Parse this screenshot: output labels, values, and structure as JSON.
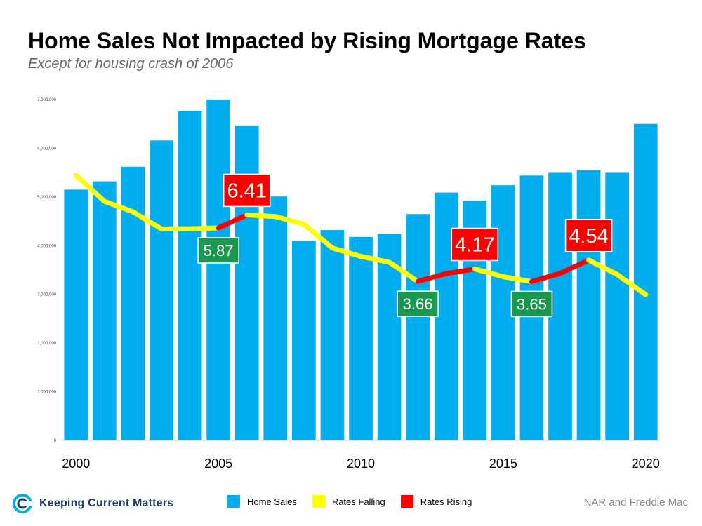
{
  "title": "Home Sales Not Impacted by Rising Mortgage Rates",
  "subtitle": "Except for housing crash of 2006",
  "source": "NAR and Freddie Mac",
  "logo": {
    "text": "Keeping Current Matters",
    "icon": "kcm-swirl-icon"
  },
  "colors": {
    "bars": "#00aeef",
    "falling": "#ffff00",
    "rising": "#ff0000",
    "label_green": "#1a9850",
    "label_red": "#ff0000"
  },
  "chart_data": {
    "type": "bar",
    "x": [
      2000,
      2001,
      2002,
      2003,
      2004,
      2005,
      2006,
      2007,
      2008,
      2009,
      2010,
      2011,
      2012,
      2013,
      2014,
      2015,
      2016,
      2017,
      2018,
      2019,
      2020
    ],
    "x_tick_labels": [
      "2000",
      "2005",
      "2010",
      "2015",
      "2020"
    ],
    "y_tick_labels": [
      "0",
      "1,000,000",
      "2,000,000",
      "3,000,000",
      "4,000,000",
      "5,000,000",
      "6,000,000",
      "7,000,000"
    ],
    "ylim": [
      0,
      7000000
    ],
    "series": [
      {
        "name": "Home Sales",
        "type": "bar",
        "values": [
          5150000,
          5320000,
          5620000,
          6160000,
          6770000,
          7000000,
          6470000,
          5010000,
          4090000,
          4320000,
          4180000,
          4240000,
          4650000,
          5090000,
          4920000,
          5240000,
          5440000,
          5510000,
          5550000,
          5510000,
          6500000
        ]
      },
      {
        "name": "Rates",
        "type": "line",
        "unit": "%",
        "values": [
          8.05,
          6.97,
          6.54,
          5.83,
          5.84,
          5.87,
          6.41,
          6.34,
          6.03,
          5.04,
          4.69,
          4.45,
          3.66,
          3.98,
          4.17,
          3.85,
          3.65,
          3.99,
          4.54,
          3.94,
          3.11
        ],
        "segments": [
          {
            "name": "Rates Falling",
            "from": 2000,
            "to": 2005
          },
          {
            "name": "Rates Rising",
            "from": 2005,
            "to": 2006
          },
          {
            "name": "Rates Falling",
            "from": 2006,
            "to": 2012
          },
          {
            "name": "Rates Rising",
            "from": 2012,
            "to": 2014
          },
          {
            "name": "Rates Falling",
            "from": 2014,
            "to": 2016
          },
          {
            "name": "Rates Rising",
            "from": 2016,
            "to": 2018
          },
          {
            "name": "Rates Falling",
            "from": 2018,
            "to": 2020
          }
        ]
      }
    ],
    "annotations": [
      {
        "x": 2005,
        "text": "5.87",
        "kind": "low"
      },
      {
        "x": 2006,
        "text": "6.41",
        "kind": "high"
      },
      {
        "x": 2012,
        "text": "3.66",
        "kind": "low"
      },
      {
        "x": 2014,
        "text": "4.17",
        "kind": "high"
      },
      {
        "x": 2016,
        "text": "3.65",
        "kind": "low"
      },
      {
        "x": 2018,
        "text": "4.54",
        "kind": "high"
      }
    ],
    "legend": [
      {
        "name": "Home Sales",
        "color": "#00aeef"
      },
      {
        "name": "Rates Falling",
        "color": "#ffff00"
      },
      {
        "name": "Rates Rising",
        "color": "#ff0000"
      }
    ],
    "legend_position": "bottom",
    "grid": false
  }
}
